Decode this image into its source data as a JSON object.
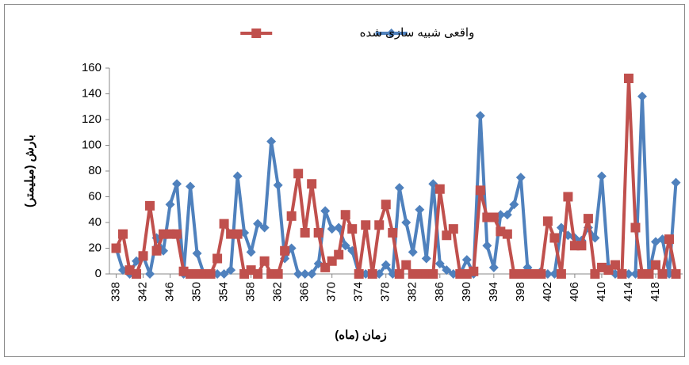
{
  "chart_data": {
    "type": "line",
    "x_label": "زمان (ماه)",
    "y_label": "بارش (میلیمتر)",
    "x": [
      338,
      339,
      340,
      341,
      342,
      343,
      344,
      345,
      346,
      347,
      348,
      349,
      350,
      351,
      352,
      353,
      354,
      355,
      356,
      357,
      358,
      359,
      360,
      361,
      362,
      363,
      364,
      365,
      366,
      367,
      368,
      369,
      370,
      371,
      372,
      373,
      374,
      375,
      376,
      377,
      378,
      379,
      380,
      381,
      382,
      383,
      384,
      385,
      386,
      387,
      388,
      389,
      390,
      391,
      392,
      393,
      394,
      395,
      396,
      397,
      398,
      399,
      400,
      401,
      402,
      403,
      404,
      405,
      406,
      407,
      408,
      409,
      410,
      411,
      412,
      413,
      414,
      415,
      416,
      417,
      418,
      419,
      420,
      421
    ],
    "series": [
      {
        "name": "واقعی",
        "color": "#4f81bd",
        "marker": "diamond",
        "values": [
          20,
          3,
          0,
          10,
          14,
          0,
          28,
          18,
          54,
          70,
          0,
          68,
          16,
          0,
          0,
          0,
          0,
          3,
          76,
          32,
          17,
          39,
          36,
          103,
          69,
          12,
          20,
          0,
          0,
          0,
          8,
          49,
          35,
          36,
          22,
          18,
          0,
          0,
          0,
          0,
          7,
          0,
          67,
          40,
          17,
          50,
          12,
          70,
          8,
          3,
          0,
          0,
          11,
          0,
          123,
          22,
          5,
          46,
          46,
          54,
          75,
          5,
          0,
          2,
          0,
          0,
          36,
          30,
          28,
          26,
          36,
          28,
          76,
          5,
          0,
          0,
          0,
          0,
          138,
          0,
          25,
          27,
          0,
          71
        ]
      },
      {
        "name": "شبیه سازی شده",
        "color": "#c0504d",
        "marker": "square",
        "values": [
          20,
          31,
          3,
          0,
          14,
          53,
          18,
          31,
          31,
          31,
          2,
          0,
          0,
          0,
          0,
          12,
          39,
          31,
          31,
          0,
          3,
          0,
          10,
          0,
          0,
          18,
          45,
          78,
          32,
          70,
          32,
          5,
          10,
          15,
          46,
          35,
          0,
          38,
          0,
          38,
          54,
          32,
          0,
          7,
          0,
          0,
          0,
          0,
          66,
          30,
          35,
          0,
          0,
          2,
          65,
          44,
          44,
          33,
          31,
          0,
          0,
          0,
          0,
          0,
          41,
          28,
          0,
          60,
          22,
          22,
          43,
          0,
          5,
          3,
          7,
          0,
          152,
          36,
          0,
          0,
          7,
          0,
          27,
          0
        ]
      }
    ],
    "xlim": [
      337,
      422
    ],
    "xticks": [
      338,
      342,
      346,
      350,
      354,
      358,
      362,
      366,
      370,
      374,
      378,
      382,
      386,
      390,
      394,
      398,
      402,
      406,
      410,
      414,
      418
    ],
    "ylim": [
      0,
      160
    ],
    "yticks": [
      0,
      20,
      40,
      60,
      80,
      100,
      120,
      140,
      160
    ],
    "grid": false
  }
}
